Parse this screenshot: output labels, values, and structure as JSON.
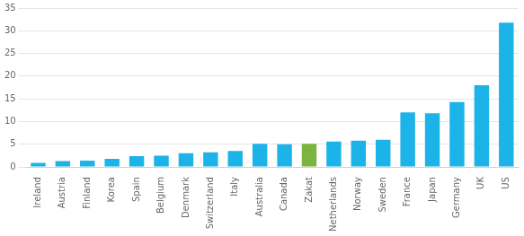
{
  "chart_data": {
    "type": "bar",
    "categories": [
      "Ireland",
      "Austria",
      "Finland",
      "Korea",
      "Spain",
      "Belgium",
      "Denmark",
      "Switzerland",
      "Italy",
      "Australia",
      "Canada",
      "Zakat",
      "Netherlands",
      "Norway",
      "Sweden",
      "France",
      "Japan",
      "Germany",
      "UK",
      "US"
    ],
    "values": [
      0.9,
      1.3,
      1.4,
      1.8,
      2.4,
      2.5,
      3.0,
      3.2,
      3.5,
      5.1,
      5.0,
      5.1,
      5.6,
      5.8,
      6.0,
      12.0,
      11.8,
      14.3,
      18.0,
      31.8
    ],
    "colors": [
      "#1cb4e8",
      "#1cb4e8",
      "#1cb4e8",
      "#1cb4e8",
      "#1cb4e8",
      "#1cb4e8",
      "#1cb4e8",
      "#1cb4e8",
      "#1cb4e8",
      "#1cb4e8",
      "#1cb4e8",
      "#7db441",
      "#1cb4e8",
      "#1cb4e8",
      "#1cb4e8",
      "#1cb4e8",
      "#1cb4e8",
      "#1cb4e8",
      "#1cb4e8",
      "#1cb4e8"
    ],
    "ylim": [
      0,
      35
    ],
    "yticks": [
      0,
      5,
      10,
      15,
      20,
      25,
      30,
      35
    ],
    "grid": true
  }
}
